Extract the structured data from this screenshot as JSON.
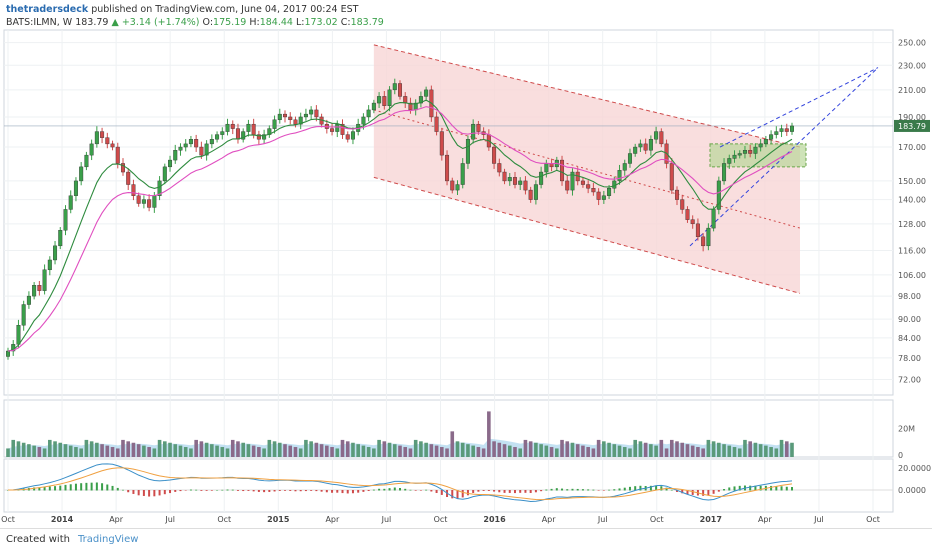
{
  "header": {
    "publisher": "thetradersdeck",
    "published_text": "published on TradingView.com, June 04, 2017 00:24 EST",
    "symbol": "BATS:ILMN, W",
    "last": "183.79",
    "change": "+3.14 (+1.74%)",
    "open_label": "O:",
    "open": "175.19",
    "high_label": "H:",
    "high": "184.44",
    "low_label": "L:",
    "low": "173.02",
    "close_label": "C:",
    "close": "183.79"
  },
  "footer": {
    "created_with": "Created with",
    "brand": "TradingView"
  },
  "colors": {
    "up": "#3a9f4a",
    "down": "#cf4b4b",
    "ema_fast": "#2e8b3e",
    "ema_slow": "#e04fc0",
    "channel_fill": "#f7d6d6",
    "channel_line": "#cf4b4b",
    "wedge": "#3344dd",
    "box_fill": "#b9d79a",
    "vol_area": "#a9d4ec",
    "macd": "#3a8fc8",
    "signal": "#f0a040"
  },
  "chart_data": {
    "type": "candlestick",
    "price_axis": {
      "ticks": [
        250,
        230,
        210,
        190,
        170,
        150,
        140,
        128,
        116,
        106,
        98,
        90,
        84,
        78,
        72
      ],
      "labels": [
        "250.00",
        "230.00",
        "210.00",
        "190.00",
        "170.00",
        "150.00",
        "140.00",
        "128.00",
        "116.00",
        "106.00",
        "98.00",
        "90.00",
        "84.00",
        "78.00",
        "72.00"
      ],
      "scale": "log",
      "last_label": "183.79"
    },
    "volume_axis": {
      "ticks": [
        "20M",
        "0"
      ]
    },
    "macd_axis": {
      "ticks": [
        "20.0000",
        "0.0000"
      ]
    },
    "time_axis": {
      "labels": [
        "Oct",
        "2014",
        "Apr",
        "Jul",
        "Oct",
        "2015",
        "Apr",
        "Jul",
        "Oct",
        "2016",
        "Apr",
        "Jul",
        "Oct",
        "2017",
        "Apr",
        "Jul",
        "Oct"
      ]
    },
    "closes": [
      80,
      82,
      88,
      95,
      98,
      102,
      100,
      108,
      112,
      118,
      125,
      135,
      142,
      150,
      158,
      165,
      172,
      180,
      176,
      172,
      170,
      160,
      155,
      148,
      142,
      138,
      140,
      136,
      142,
      150,
      158,
      162,
      168,
      170,
      172,
      175,
      170,
      165,
      172,
      175,
      178,
      180,
      185,
      182,
      175,
      180,
      185,
      178,
      175,
      178,
      182,
      188,
      192,
      190,
      188,
      185,
      190,
      192,
      195,
      190,
      185,
      182,
      180,
      185,
      178,
      175,
      180,
      185,
      190,
      195,
      200,
      205,
      198,
      210,
      215,
      205,
      200,
      195,
      200,
      205,
      210,
      190,
      180,
      165,
      150,
      145,
      148,
      160,
      175,
      185,
      180,
      178,
      170,
      160,
      155,
      150,
      152,
      148,
      150,
      145,
      140,
      148,
      155,
      160,
      158,
      162,
      150,
      145,
      155,
      150,
      148,
      146,
      144,
      140,
      142,
      146,
      150,
      156,
      160,
      166,
      170,
      172,
      168,
      175,
      180,
      172,
      160,
      145,
      140,
      135,
      130,
      128,
      122,
      118,
      126,
      135,
      150,
      160,
      163,
      165,
      166,
      168,
      166,
      170,
      172,
      175,
      178,
      180,
      182,
      180,
      183.79
    ],
    "ema_fast": "10-period EMA of closes",
    "ema_slow": "20-period EMA of closes"
  }
}
